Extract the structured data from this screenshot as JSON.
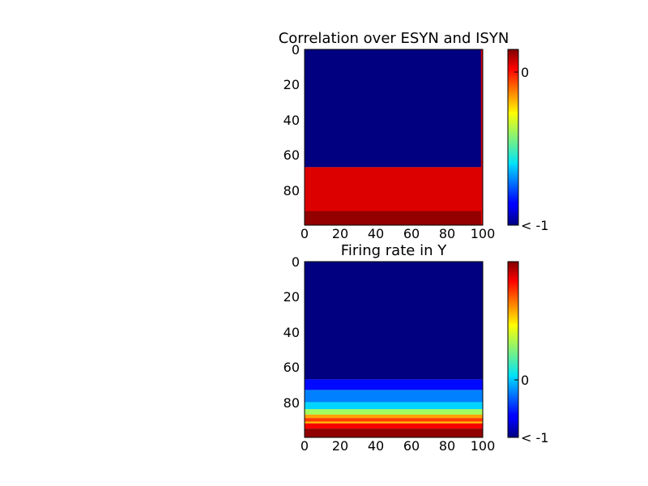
{
  "figure": {
    "background": "#ffffff",
    "colormap": "jet"
  },
  "chart_data": [
    {
      "type": "heatmap",
      "title": "Correlation over ESYN and ISYN",
      "xlabel": "",
      "ylabel": "",
      "xlim": [
        0,
        100
      ],
      "ylim": [
        100,
        0
      ],
      "y_inverted": true,
      "x_ticks": [
        "0",
        "20",
        "40",
        "60",
        "80",
        "100"
      ],
      "y_ticks": [
        "0",
        "20",
        "40",
        "60",
        "80"
      ],
      "colorbar": {
        "range": [
          -1,
          0.1
        ],
        "ticks": [
          {
            "label": "0",
            "value": 0
          },
          {
            "label": "< -1",
            "value": -1
          }
        ]
      },
      "regions": [
        {
          "description": "rows 0-67 across all columns",
          "row_start": 0,
          "row_end": 67,
          "col_start": 0,
          "col_end": 100,
          "value": -1.1
        },
        {
          "description": "rows 67-100",
          "row_start": 67,
          "row_end": 100,
          "col_start": 0,
          "col_end": 100,
          "value": 0.0
        },
        {
          "description": "bottom band",
          "row_start": 92,
          "row_end": 100,
          "col_start": 0,
          "col_end": 100,
          "value": 0.08
        },
        {
          "description": "last column",
          "row_start": 0,
          "row_end": 100,
          "col_start": 99,
          "col_end": 100,
          "value": 0.0
        }
      ]
    },
    {
      "type": "heatmap",
      "title": "Firing rate in Y",
      "xlabel": "",
      "ylabel": "",
      "xlim": [
        0,
        100
      ],
      "ylim": [
        100,
        0
      ],
      "y_inverted": true,
      "x_ticks": [
        "0",
        "20",
        "40",
        "60",
        "80",
        "100"
      ],
      "y_ticks": [
        "0",
        "20",
        "40",
        "60",
        "80"
      ],
      "colorbar": {
        "range": [
          -1,
          2
        ],
        "ticks": [
          {
            "label": "0",
            "value": 0
          },
          {
            "label": "< -1",
            "value": -1
          }
        ]
      },
      "regions": [
        {
          "row_start": 0,
          "row_end": 67,
          "col_start": 0,
          "col_end": 100,
          "value": -1.1
        },
        {
          "row_start": 67,
          "row_end": 73,
          "col_start": 0,
          "col_end": 100,
          "value": -0.6
        },
        {
          "row_start": 73,
          "row_end": 80,
          "col_start": 0,
          "col_end": 100,
          "value": -0.25
        },
        {
          "row_start": 80,
          "row_end": 84,
          "col_start": 0,
          "col_end": 100,
          "value": 0.0
        },
        {
          "row_start": 84,
          "row_end": 87,
          "col_start": 0,
          "col_end": 100,
          "value": 0.6
        },
        {
          "row_start": 87,
          "row_end": 89,
          "col_start": 0,
          "col_end": 100,
          "value": 1.15
        },
        {
          "row_start": 89,
          "row_end": 91,
          "col_start": 0,
          "col_end": 100,
          "value": 1.45
        },
        {
          "row_start": 91,
          "row_end": 92,
          "col_start": 0,
          "col_end": 100,
          "value": 1.05
        },
        {
          "row_start": 92,
          "row_end": 95,
          "col_start": 0,
          "col_end": 100,
          "value": 1.65
        },
        {
          "row_start": 95,
          "row_end": 100,
          "col_start": 0,
          "col_end": 100,
          "value": 1.95
        }
      ]
    }
  ]
}
